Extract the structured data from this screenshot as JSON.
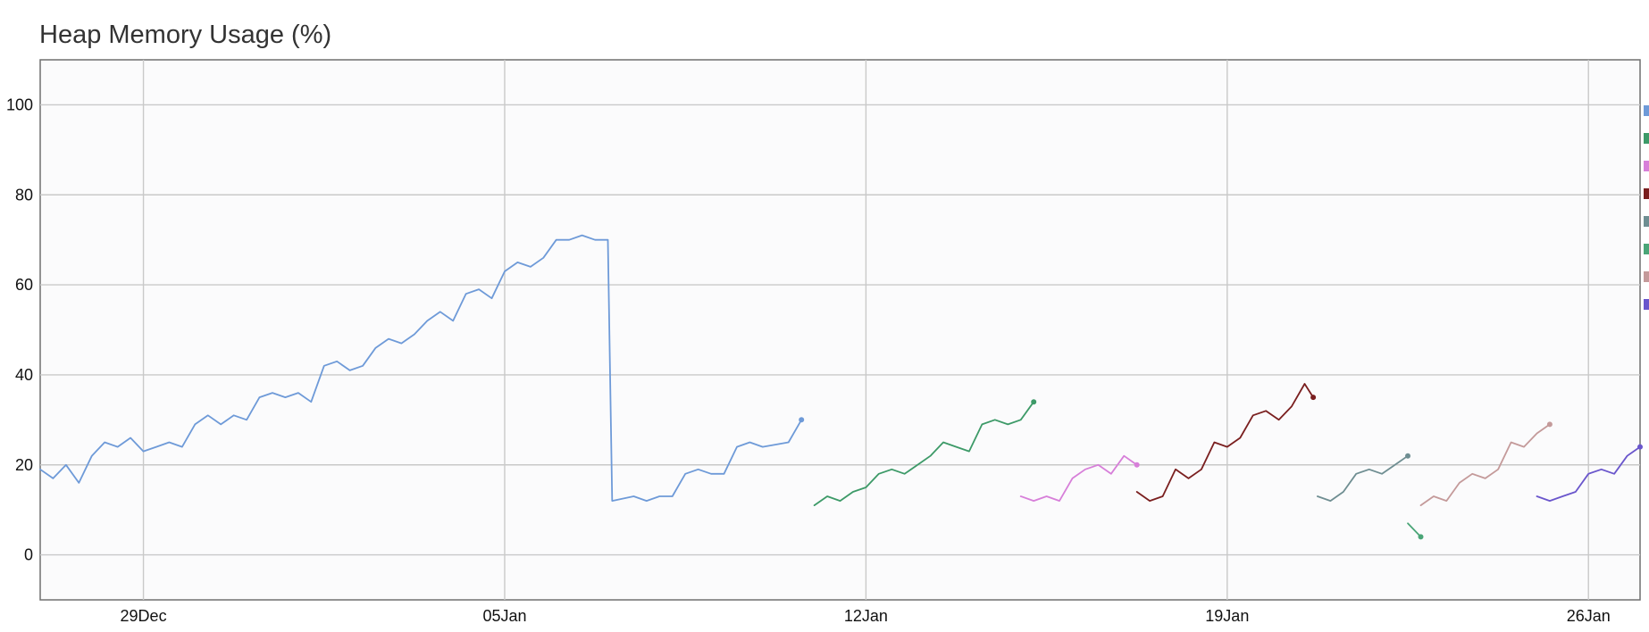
{
  "chart_data": {
    "type": "line",
    "title": "Heap Memory Usage (%)",
    "xlabel": "",
    "ylabel": "",
    "ylim": [
      -10,
      110
    ],
    "xlim": [
      "2024-12-27T00:00",
      "2025-01-27T00:00"
    ],
    "y_ticks": [
      0,
      20,
      40,
      60,
      80,
      100
    ],
    "x_ticks": [
      {
        "date": "2024-12-29",
        "label": "29Dec"
      },
      {
        "date": "2025-01-05",
        "label": "05Jan"
      },
      {
        "date": "2025-01-12",
        "label": "12Jan"
      },
      {
        "date": "2025-01-19",
        "label": "19Jan"
      },
      {
        "date": "2025-01-26",
        "label": "26Jan"
      }
    ],
    "grid": true,
    "legend": "right, clipped",
    "series": [
      {
        "color": "#6e9ad8",
        "points": [
          [
            "2024-12-27T00:00",
            19
          ],
          [
            "2024-12-27T06:00",
            17
          ],
          [
            "2024-12-27T12:00",
            20
          ],
          [
            "2024-12-27T18:00",
            16
          ],
          [
            "2024-12-28T00:00",
            22
          ],
          [
            "2024-12-28T06:00",
            25
          ],
          [
            "2024-12-28T12:00",
            24
          ],
          [
            "2024-12-28T18:00",
            26
          ],
          [
            "2024-12-29T00:00",
            23
          ],
          [
            "2024-12-29T06:00",
            24
          ],
          [
            "2024-12-29T12:00",
            25
          ],
          [
            "2024-12-29T18:00",
            24
          ],
          [
            "2024-12-30T00:00",
            29
          ],
          [
            "2024-12-30T06:00",
            31
          ],
          [
            "2024-12-30T12:00",
            29
          ],
          [
            "2024-12-30T18:00",
            31
          ],
          [
            "2024-12-31T00:00",
            30
          ],
          [
            "2024-12-31T06:00",
            35
          ],
          [
            "2024-12-31T12:00",
            36
          ],
          [
            "2024-12-31T18:00",
            35
          ],
          [
            "2025-01-01T00:00",
            36
          ],
          [
            "2025-01-01T06:00",
            34
          ],
          [
            "2025-01-01T12:00",
            42
          ],
          [
            "2025-01-01T18:00",
            43
          ],
          [
            "2025-01-02T00:00",
            41
          ],
          [
            "2025-01-02T06:00",
            42
          ],
          [
            "2025-01-02T12:00",
            46
          ],
          [
            "2025-01-02T18:00",
            48
          ],
          [
            "2025-01-03T00:00",
            47
          ],
          [
            "2025-01-03T06:00",
            49
          ],
          [
            "2025-01-03T12:00",
            52
          ],
          [
            "2025-01-03T18:00",
            54
          ],
          [
            "2025-01-04T00:00",
            52
          ],
          [
            "2025-01-04T06:00",
            58
          ],
          [
            "2025-01-04T12:00",
            59
          ],
          [
            "2025-01-04T18:00",
            57
          ],
          [
            "2025-01-05T00:00",
            63
          ],
          [
            "2025-01-05T06:00",
            65
          ],
          [
            "2025-01-05T12:00",
            64
          ],
          [
            "2025-01-05T18:00",
            66
          ],
          [
            "2025-01-06T00:00",
            70
          ],
          [
            "2025-01-06T06:00",
            70
          ],
          [
            "2025-01-06T12:00",
            71
          ],
          [
            "2025-01-06T18:00",
            70
          ],
          [
            "2025-01-07T00:00",
            70
          ],
          [
            "2025-01-07T02:00",
            12
          ],
          [
            "2025-01-07T12:00",
            13
          ],
          [
            "2025-01-07T18:00",
            12
          ],
          [
            "2025-01-08T00:00",
            13
          ],
          [
            "2025-01-08T06:00",
            13
          ],
          [
            "2025-01-08T12:00",
            18
          ],
          [
            "2025-01-08T18:00",
            19
          ],
          [
            "2025-01-09T00:00",
            18
          ],
          [
            "2025-01-09T06:00",
            18
          ],
          [
            "2025-01-09T12:00",
            24
          ],
          [
            "2025-01-09T18:00",
            25
          ],
          [
            "2025-01-10T00:00",
            24
          ],
          [
            "2025-01-10T12:00",
            25
          ],
          [
            "2025-01-10T18:00",
            30
          ]
        ]
      },
      {
        "color": "#3d9a68",
        "points": [
          [
            "2025-01-11T00:00",
            11
          ],
          [
            "2025-01-11T06:00",
            13
          ],
          [
            "2025-01-11T12:00",
            12
          ],
          [
            "2025-01-11T18:00",
            14
          ],
          [
            "2025-01-12T00:00",
            15
          ],
          [
            "2025-01-12T06:00",
            18
          ],
          [
            "2025-01-12T12:00",
            19
          ],
          [
            "2025-01-12T18:00",
            18
          ],
          [
            "2025-01-13T00:00",
            20
          ],
          [
            "2025-01-13T06:00",
            22
          ],
          [
            "2025-01-13T12:00",
            25
          ],
          [
            "2025-01-13T18:00",
            24
          ],
          [
            "2025-01-14T00:00",
            23
          ],
          [
            "2025-01-14T06:00",
            29
          ],
          [
            "2025-01-14T12:00",
            30
          ],
          [
            "2025-01-14T18:00",
            29
          ],
          [
            "2025-01-15T00:00",
            30
          ],
          [
            "2025-01-15T06:00",
            34
          ]
        ]
      },
      {
        "color": "#d77fd9",
        "points": [
          [
            "2025-01-15T00:00",
            13
          ],
          [
            "2025-01-15T06:00",
            12
          ],
          [
            "2025-01-15T12:00",
            13
          ],
          [
            "2025-01-15T18:00",
            12
          ],
          [
            "2025-01-16T00:00",
            17
          ],
          [
            "2025-01-16T06:00",
            19
          ],
          [
            "2025-01-16T12:00",
            20
          ],
          [
            "2025-01-16T18:00",
            18
          ],
          [
            "2025-01-17T00:00",
            22
          ],
          [
            "2025-01-17T06:00",
            20
          ]
        ]
      },
      {
        "color": "#7a1f1f",
        "points": [
          [
            "2025-01-17T06:00",
            14
          ],
          [
            "2025-01-17T12:00",
            12
          ],
          [
            "2025-01-17T18:00",
            13
          ],
          [
            "2025-01-18T00:00",
            19
          ],
          [
            "2025-01-18T06:00",
            17
          ],
          [
            "2025-01-18T12:00",
            19
          ],
          [
            "2025-01-18T18:00",
            25
          ],
          [
            "2025-01-19T00:00",
            24
          ],
          [
            "2025-01-19T06:00",
            26
          ],
          [
            "2025-01-19T12:00",
            31
          ],
          [
            "2025-01-19T18:00",
            32
          ],
          [
            "2025-01-20T00:00",
            30
          ],
          [
            "2025-01-20T06:00",
            33
          ],
          [
            "2025-01-20T12:00",
            38
          ],
          [
            "2025-01-20T16:00",
            35
          ]
        ]
      },
      {
        "color": "#6f8e92",
        "points": [
          [
            "2025-01-20T18:00",
            13
          ],
          [
            "2025-01-21T00:00",
            12
          ],
          [
            "2025-01-21T06:00",
            14
          ],
          [
            "2025-01-21T12:00",
            18
          ],
          [
            "2025-01-21T18:00",
            19
          ],
          [
            "2025-01-22T00:00",
            18
          ],
          [
            "2025-01-22T06:00",
            20
          ],
          [
            "2025-01-22T12:00",
            22
          ]
        ]
      },
      {
        "color": "#4aa577",
        "points": [
          [
            "2025-01-22T12:00",
            7
          ],
          [
            "2025-01-22T18:00",
            4
          ]
        ]
      },
      {
        "color": "#c49a9a",
        "points": [
          [
            "2025-01-22T18:00",
            11
          ],
          [
            "2025-01-23T00:00",
            13
          ],
          [
            "2025-01-23T06:00",
            12
          ],
          [
            "2025-01-23T12:00",
            16
          ],
          [
            "2025-01-23T18:00",
            18
          ],
          [
            "2025-01-24T00:00",
            17
          ],
          [
            "2025-01-24T06:00",
            19
          ],
          [
            "2025-01-24T12:00",
            25
          ],
          [
            "2025-01-24T18:00",
            24
          ],
          [
            "2025-01-25T00:00",
            27
          ],
          [
            "2025-01-25T06:00",
            29
          ]
        ]
      },
      {
        "color": "#6a56cc",
        "points": [
          [
            "2025-01-25T00:00",
            13
          ],
          [
            "2025-01-25T06:00",
            12
          ],
          [
            "2025-01-25T12:00",
            13
          ],
          [
            "2025-01-25T18:00",
            14
          ],
          [
            "2025-01-26T00:00",
            18
          ],
          [
            "2025-01-26T06:00",
            19
          ],
          [
            "2025-01-26T12:00",
            18
          ],
          [
            "2025-01-26T18:00",
            22
          ],
          [
            "2025-01-27T00:00",
            24
          ]
        ]
      }
    ]
  }
}
